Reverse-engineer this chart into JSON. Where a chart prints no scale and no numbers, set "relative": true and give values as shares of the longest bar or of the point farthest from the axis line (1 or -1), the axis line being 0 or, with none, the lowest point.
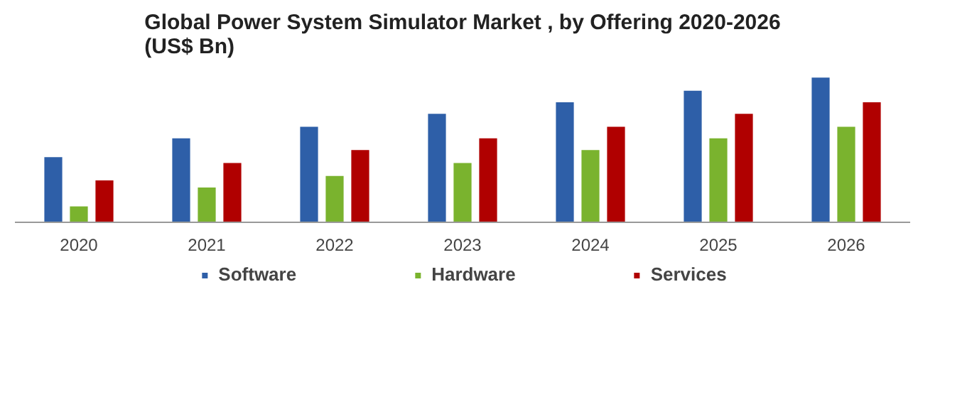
{
  "chart_data": {
    "type": "bar",
    "title": "Global Power System Simulator Market , by Offering 2020-2026\n(US$ Bn)",
    "relative": true,
    "categories": [
      "2020",
      "2021",
      "2022",
      "2023",
      "2024",
      "2025",
      "2026"
    ],
    "series": [
      {
        "name": "Software",
        "color": "#2e5fa8",
        "values": [
          0.45,
          0.58,
          0.66,
          0.75,
          0.83,
          0.91,
          1
        ]
      },
      {
        "name": "Hardware",
        "color": "#7ab32e",
        "values": [
          0.11,
          0.24,
          0.32,
          0.41,
          0.5,
          0.58,
          0.66
        ]
      },
      {
        "name": "Services",
        "color": "#b00000",
        "values": [
          0.29,
          0.41,
          0.5,
          0.58,
          0.66,
          0.75,
          0.83
        ]
      }
    ],
    "grid": false,
    "legend": "bottom"
  }
}
